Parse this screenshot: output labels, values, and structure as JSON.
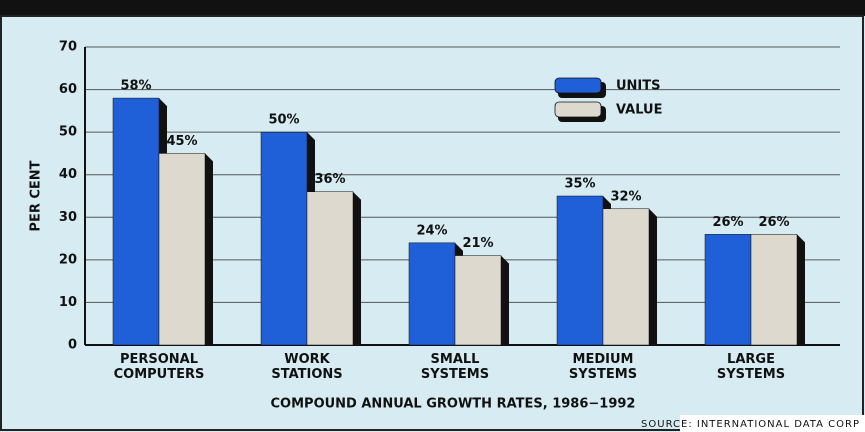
{
  "chart_data": {
    "type": "bar",
    "categories": [
      "PERSONAL COMPUTERS",
      "WORK STATIONS",
      "SMALL SYSTEMS",
      "MEDIUM SYSTEMS",
      "LARGE SYSTEMS"
    ],
    "series": [
      {
        "name": "UNITS",
        "color": "#1f5fd8",
        "values": [
          58,
          50,
          24,
          35,
          26
        ],
        "value_labels": [
          "58%",
          "50%",
          "24%",
          "35%",
          "26%"
        ]
      },
      {
        "name": "VALUE",
        "color": "#ddd9cf",
        "values": [
          45,
          36,
          21,
          32,
          26
        ],
        "value_labels": [
          "45%",
          "36%",
          "21%",
          "32%",
          "26%"
        ]
      }
    ],
    "ylabel": "PER CENT",
    "xlabel": "COMPOUND ANNUAL GROWTH RATES, 1986−1992",
    "source": "SOURCE: INTERNATIONAL DATA CORP",
    "ylim": [
      0,
      70
    ],
    "yticks": [
      0,
      10,
      20,
      30,
      40,
      50,
      60,
      70
    ],
    "grid": true
  }
}
